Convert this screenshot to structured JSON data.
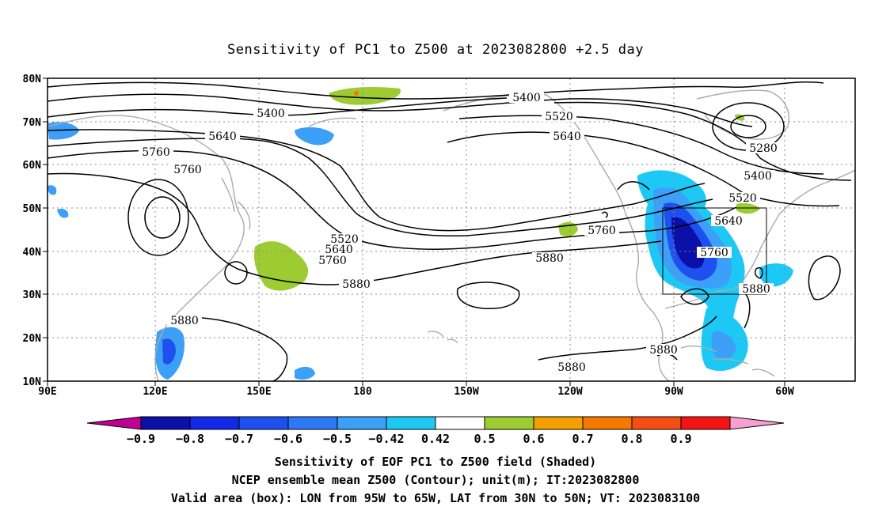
{
  "title": "Sensitivity of PC1 to Z500 at 2023082800 +2.5 day",
  "lat_ticks": [
    "80N",
    "70N",
    "60N",
    "50N",
    "40N",
    "30N",
    "20N",
    "10N"
  ],
  "lon_ticks": [
    "90E",
    "120E",
    "150E",
    "180",
    "150W",
    "120W",
    "90W",
    "60W"
  ],
  "contour_labels": [
    {
      "text": "5400"
    },
    {
      "text": "5400"
    },
    {
      "text": "5520"
    },
    {
      "text": "5640"
    },
    {
      "text": "5640"
    },
    {
      "text": "5760"
    },
    {
      "text": "5760"
    },
    {
      "text": "5280"
    },
    {
      "text": "5400"
    },
    {
      "text": "5520"
    },
    {
      "text": "5640"
    },
    {
      "text": "5760"
    },
    {
      "text": "5880"
    },
    {
      "text": "5520"
    },
    {
      "text": "5640"
    },
    {
      "text": "5760"
    },
    {
      "text": "5880"
    },
    {
      "text": "5760"
    },
    {
      "text": "5880"
    },
    {
      "text": "5880"
    },
    {
      "text": "5880"
    },
    {
      "text": "5880"
    }
  ],
  "colorbar": {
    "labels": [
      "-0.9",
      "-0.8",
      "-0.7",
      "-0.6",
      "-0.5",
      "-0.42",
      "0.42",
      "0.5",
      "0.6",
      "0.7",
      "0.8",
      "0.9"
    ],
    "colors": [
      "#0a10a8",
      "#1428e8",
      "#1e50f0",
      "#2d78f5",
      "#3ca0f8",
      "#1ec8f5",
      "#ffffff",
      "#9ccc32",
      "#f5a000",
      "#f57800",
      "#f54e14",
      "#f51414"
    ],
    "left_tip_color": "#c00090",
    "right_tip_color": "#f5a0d0"
  },
  "caption": {
    "line1": "Sensitivity of EOF PC1 to Z500 field (Shaded)",
    "line2": "NCEP ensemble mean Z500 (Contour); unit(m); IT:2023082800",
    "line3": "Valid area (box): LON from 95W to 65W, LAT from 30N to 50N; VT: 2023083100"
  }
}
